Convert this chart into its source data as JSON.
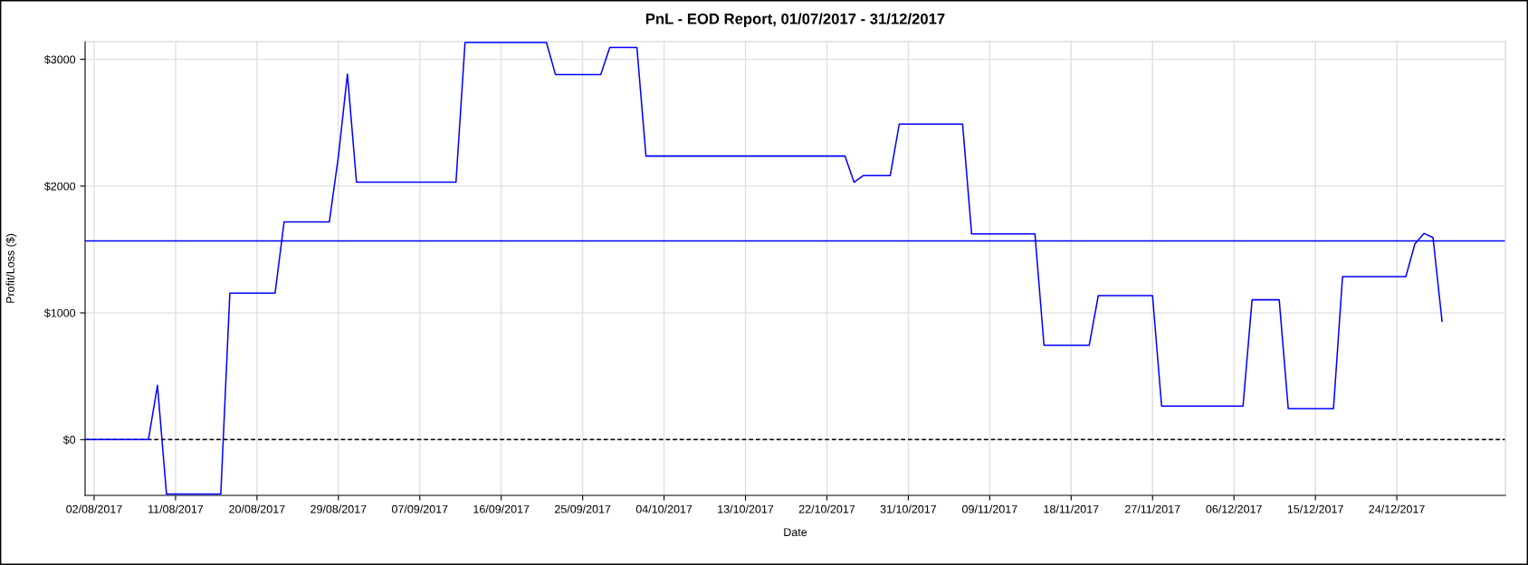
{
  "chart_data": {
    "type": "line",
    "title": "PnL - EOD Report, 01/07/2017 - 31/12/2017",
    "xlabel": "Date",
    "ylabel": "Profit/Loss ($)",
    "x": [
      "2017-08-01",
      "2017-08-08",
      "2017-08-09",
      "2017-08-10",
      "2017-08-16",
      "2017-08-17",
      "2017-08-22",
      "2017-08-23",
      "2017-08-28",
      "2017-08-29",
      "2017-08-30",
      "2017-08-31",
      "2017-09-11",
      "2017-09-12",
      "2017-09-21",
      "2017-09-22",
      "2017-09-27",
      "2017-09-28",
      "2017-10-01",
      "2017-10-02",
      "2017-10-24",
      "2017-10-25",
      "2017-10-26",
      "2017-10-29",
      "2017-10-30",
      "2017-11-06",
      "2017-11-07",
      "2017-11-14",
      "2017-11-15",
      "2017-11-20",
      "2017-11-21",
      "2017-11-27",
      "2017-11-28",
      "2017-12-07",
      "2017-12-08",
      "2017-12-11",
      "2017-12-12",
      "2017-12-17",
      "2017-12-18",
      "2017-12-25",
      "2017-12-26",
      "2017-12-27",
      "2017-12-28",
      "2017-12-29"
    ],
    "series": [
      {
        "color": "#0000ff",
        "values": [
          0,
          0,
          428,
          -430,
          -430,
          1155,
          1155,
          1718,
          1718,
          2234,
          2884,
          2031,
          2031,
          3133,
          3133,
          2879,
          2879,
          3093,
          3093,
          2237,
          2237,
          2031,
          2082,
          2082,
          2490,
          2490,
          1622,
          1622,
          744,
          744,
          1136,
          1136,
          264,
          264,
          1103,
          1103,
          244,
          244,
          1286,
          1286,
          1544,
          1627,
          1594,
          934
        ]
      }
    ],
    "xlim": [
      "2017-08-01",
      "2018-01-05"
    ],
    "xticks": [
      {
        "value": "2017-08-02",
        "label": "02/08/2017"
      },
      {
        "value": "2017-08-11",
        "label": "11/08/2017"
      },
      {
        "value": "2017-08-20",
        "label": "20/08/2017"
      },
      {
        "value": "2017-08-29",
        "label": "29/08/2017"
      },
      {
        "value": "2017-09-07",
        "label": "07/09/2017"
      },
      {
        "value": "2017-09-16",
        "label": "16/09/2017"
      },
      {
        "value": "2017-09-25",
        "label": "25/09/2017"
      },
      {
        "value": "2017-10-04",
        "label": "04/10/2017"
      },
      {
        "value": "2017-10-13",
        "label": "13/10/2017"
      },
      {
        "value": "2017-10-22",
        "label": "22/10/2017"
      },
      {
        "value": "2017-10-31",
        "label": "31/10/2017"
      },
      {
        "value": "2017-11-09",
        "label": "09/11/2017"
      },
      {
        "value": "2017-11-18",
        "label": "18/11/2017"
      },
      {
        "value": "2017-11-27",
        "label": "27/11/2017"
      },
      {
        "value": "2017-12-06",
        "label": "06/12/2017"
      },
      {
        "value": "2017-12-15",
        "label": "15/12/2017"
      },
      {
        "value": "2017-12-24",
        "label": "24/12/2017"
      }
    ],
    "ylim": [
      -440,
      3140
    ],
    "yticks": [
      {
        "value": 0,
        "label": "$0"
      },
      {
        "value": 1000,
        "label": "$1000"
      },
      {
        "value": 2000,
        "label": "$2000"
      },
      {
        "value": 3000,
        "label": "$3000"
      }
    ],
    "grid": true,
    "line_style": "solid",
    "ref_lines": [
      {
        "axis": "y",
        "value": 0,
        "color": "#000000",
        "line_style": "dashed"
      },
      {
        "axis": "y",
        "value": 1568,
        "color": "#0000ff",
        "line_style": "solid"
      }
    ]
  }
}
